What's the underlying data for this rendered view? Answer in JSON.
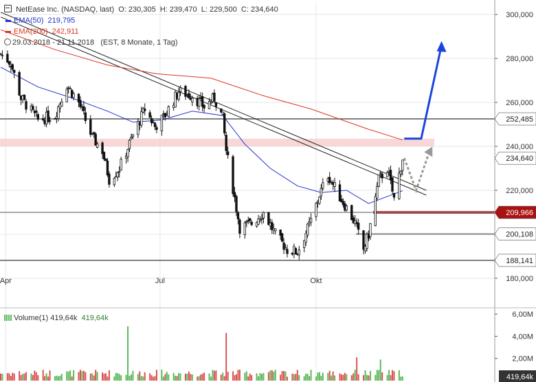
{
  "header": {
    "title": "NetEase Inc. (NASDAQ, last)",
    "open_label": "O:",
    "open": "230,305",
    "high_label": "H:",
    "high": "239,470",
    "low_label": "L:",
    "low": "229,500",
    "close_label": "C:",
    "close": "234,640",
    "ema50_label": "EMA(50)",
    "ema50_value": "219,795",
    "ema200_label": "EMA(200)",
    "ema200_value": "242,911",
    "period": "29.03.2018 - 21.11.2018",
    "settings": "(EST, 8 Monate, 1 Tag)",
    "volume_label": "Volume(1)",
    "volume_value": "419,64k",
    "volume_value2": "419,64k"
  },
  "colors": {
    "ema50": "#2233cc",
    "ema200": "#dd3322",
    "candle": "#111111",
    "resistance_zone": "#f4c9c9",
    "support_red": "#aa1111",
    "projection_blue": "#1a44dd",
    "projection_grey": "#999999",
    "volume_up": "#5cb85c",
    "volume_down": "#d9534f",
    "label_dark": "#333333"
  },
  "chart_data": {
    "type": "candlestick",
    "instrument": "NetEase Inc. (NASDAQ)",
    "period": "29.03.2018 - 21.11.2018",
    "y_ticks": [
      180000,
      200000,
      220000,
      240000,
      260000,
      280000,
      300000
    ],
    "y_tick_labels": [
      "180,000",
      "200,000",
      "220,000",
      "240,000",
      "260,000",
      "280,000",
      "300,000"
    ],
    "ylim": [
      173000,
      305000
    ],
    "x_ticks": [
      "Apr",
      "Jul",
      "Okt"
    ],
    "x_tick_dates": [
      "2018-04-01",
      "2018-07-01",
      "2018-10-01"
    ],
    "x_range": [
      "2018-03-29",
      "2018-11-21"
    ],
    "price_path": [
      [
        "2018-03-29",
        282000
      ],
      [
        "2018-04-04",
        278000
      ],
      [
        "2018-04-10",
        262000
      ],
      [
        "2018-04-20",
        252000
      ],
      [
        "2018-04-30",
        254000
      ],
      [
        "2018-05-07",
        268000
      ],
      [
        "2018-05-14",
        260000
      ],
      [
        "2018-05-22",
        244000
      ],
      [
        "2018-05-28",
        238000
      ],
      [
        "2018-06-01",
        225000
      ],
      [
        "2018-06-07",
        230000
      ],
      [
        "2018-06-15",
        245000
      ],
      [
        "2018-06-22",
        257000
      ],
      [
        "2018-06-28",
        249000
      ],
      [
        "2018-07-03",
        253000
      ],
      [
        "2018-07-12",
        265000
      ],
      [
        "2018-07-20",
        263000
      ],
      [
        "2018-07-27",
        258000
      ],
      [
        "2018-08-02",
        262000
      ],
      [
        "2018-08-07",
        253000
      ],
      [
        "2018-08-09",
        238000
      ],
      [
        "2018-08-13",
        221000
      ],
      [
        "2018-08-17",
        203000
      ],
      [
        "2018-08-24",
        205000
      ],
      [
        "2018-08-31",
        210000
      ],
      [
        "2018-09-07",
        200000
      ],
      [
        "2018-09-14",
        193000
      ],
      [
        "2018-09-20",
        192000
      ],
      [
        "2018-09-28",
        206000
      ],
      [
        "2018-10-03",
        218000
      ],
      [
        "2018-10-08",
        227000
      ],
      [
        "2018-10-15",
        217000
      ],
      [
        "2018-10-19",
        212000
      ],
      [
        "2018-10-24",
        205000
      ],
      [
        "2018-10-29",
        193000
      ],
      [
        "2018-11-01",
        200000
      ],
      [
        "2018-11-07",
        225000
      ],
      [
        "2018-11-12",
        230000
      ],
      [
        "2018-11-16",
        216000
      ],
      [
        "2018-11-21",
        234640
      ]
    ],
    "series": [
      {
        "name": "EMA(50)",
        "points": [
          [
            "2018-03-29",
            276000
          ],
          [
            "2018-04-20",
            267000
          ],
          [
            "2018-05-10",
            262000
          ],
          [
            "2018-05-31",
            256000
          ],
          [
            "2018-06-15",
            251000
          ],
          [
            "2018-07-02",
            252000
          ],
          [
            "2018-07-20",
            256000
          ],
          [
            "2018-08-07",
            254000
          ],
          [
            "2018-08-20",
            241000
          ],
          [
            "2018-09-04",
            230000
          ],
          [
            "2018-09-20",
            222000
          ],
          [
            "2018-10-04",
            219000
          ],
          [
            "2018-10-19",
            220000
          ],
          [
            "2018-11-01",
            214000
          ],
          [
            "2018-11-21",
            219795
          ]
        ]
      },
      {
        "name": "EMA(200)",
        "points": [
          [
            "2018-03-29",
            293000
          ],
          [
            "2018-04-30",
            284000
          ],
          [
            "2018-05-31",
            277000
          ],
          [
            "2018-06-29",
            273000
          ],
          [
            "2018-07-31",
            271000
          ],
          [
            "2018-08-31",
            263000
          ],
          [
            "2018-09-28",
            257000
          ],
          [
            "2018-10-31",
            248000
          ],
          [
            "2018-11-21",
            242911
          ]
        ]
      }
    ],
    "trendline": {
      "start": [
        "2018-03-29",
        301000
      ],
      "end": [
        "2018-12-05",
        220000
      ]
    },
    "horizontal_levels": [
      {
        "value": 252485,
        "label": "252,485"
      },
      {
        "value": 209966,
        "label": "209,966"
      },
      {
        "value": 200108,
        "label": "200,108"
      },
      {
        "value": 188141,
        "label": "188,141"
      }
    ],
    "resistance_zone": [
      240000,
      243500
    ],
    "last_price": {
      "value": 234640,
      "label": "234,640"
    },
    "projection_bullish": [
      [
        "2018-11-22",
        243500
      ],
      [
        "2018-12-02",
        243500
      ],
      [
        "2018-12-14",
        286000
      ]
    ],
    "projection_bearish": [
      [
        "2018-11-22",
        234640
      ],
      [
        "2018-11-29",
        220000
      ],
      [
        "2018-12-07",
        238000
      ]
    ],
    "volume": {
      "y_ticks": [
        2000000,
        4000000,
        6000000
      ],
      "y_tick_labels": [
        "2,00M",
        "4,00M",
        "6,00M"
      ],
      "ylim": [
        0,
        6200000
      ],
      "last": "419,64k",
      "spikes": [
        [
          "2018-06-12",
          4900000
        ],
        [
          "2018-08-09",
          4300000
        ],
        [
          "2018-10-25",
          2100000
        ],
        [
          "2018-11-08",
          1900000
        ]
      ]
    }
  }
}
